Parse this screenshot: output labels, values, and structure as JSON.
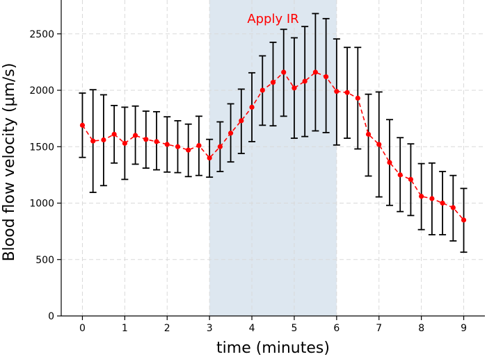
{
  "chart_data": {
    "type": "line",
    "title": "",
    "xlabel": "time (minutes)",
    "ylabel": "Blood flow velocity (μm/s)",
    "xlim": [
      -0.5,
      9.5
    ],
    "ylim": [
      0,
      2800
    ],
    "xticks": [
      0,
      1,
      2,
      3,
      4,
      5,
      6,
      7,
      8,
      9
    ],
    "yticks": [
      0,
      500,
      1000,
      1500,
      2000,
      2500
    ],
    "grid": true,
    "shaded_region": {
      "x_start": 3,
      "x_end": 6,
      "color": "#dde7f0",
      "label": "Apply IR",
      "label_color": "#ff0000"
    },
    "series": [
      {
        "color": "#ff0000",
        "line_style": "dashed",
        "marker": "circle",
        "x": [
          0,
          0.25,
          0.5,
          0.75,
          1,
          1.25,
          1.5,
          1.75,
          2,
          2.25,
          2.5,
          2.75,
          3,
          3.25,
          3.5,
          3.75,
          4,
          4.25,
          4.5,
          4.75,
          5,
          5.25,
          5.5,
          5.75,
          6,
          6.25,
          6.5,
          6.75,
          7,
          7.25,
          7.5,
          7.75,
          8,
          8.25,
          8.5,
          8.75,
          9
        ],
        "y": [
          1690,
          1550,
          1560,
          1610,
          1530,
          1600,
          1565,
          1545,
          1520,
          1500,
          1470,
          1510,
          1400,
          1500,
          1620,
          1730,
          1850,
          2000,
          2070,
          2160,
          2020,
          2080,
          2160,
          2120,
          1990,
          1980,
          1930,
          1610,
          1520,
          1360,
          1250,
          1210,
          1060,
          1040,
          1000,
          960,
          850
        ],
        "y_err_low": [
          1405,
          1095,
          1155,
          1355,
          1210,
          1345,
          1310,
          1295,
          1275,
          1270,
          1235,
          1245,
          1230,
          1280,
          1365,
          1440,
          1545,
          1690,
          1685,
          1770,
          1575,
          1590,
          1640,
          1625,
          1515,
          1575,
          1480,
          1240,
          1055,
          980,
          925,
          890,
          765,
          720,
          720,
          665,
          565
        ],
        "y_err_high": [
          1975,
          2005,
          1960,
          1865,
          1850,
          1860,
          1815,
          1810,
          1765,
          1730,
          1700,
          1770,
          1565,
          1720,
          1880,
          2010,
          2155,
          2305,
          2425,
          2540,
          2465,
          2565,
          2680,
          2635,
          2455,
          2380,
          2380,
          1965,
          1985,
          1740,
          1580,
          1525,
          1350,
          1355,
          1280,
          1245,
          1130
        ]
      }
    ]
  }
}
